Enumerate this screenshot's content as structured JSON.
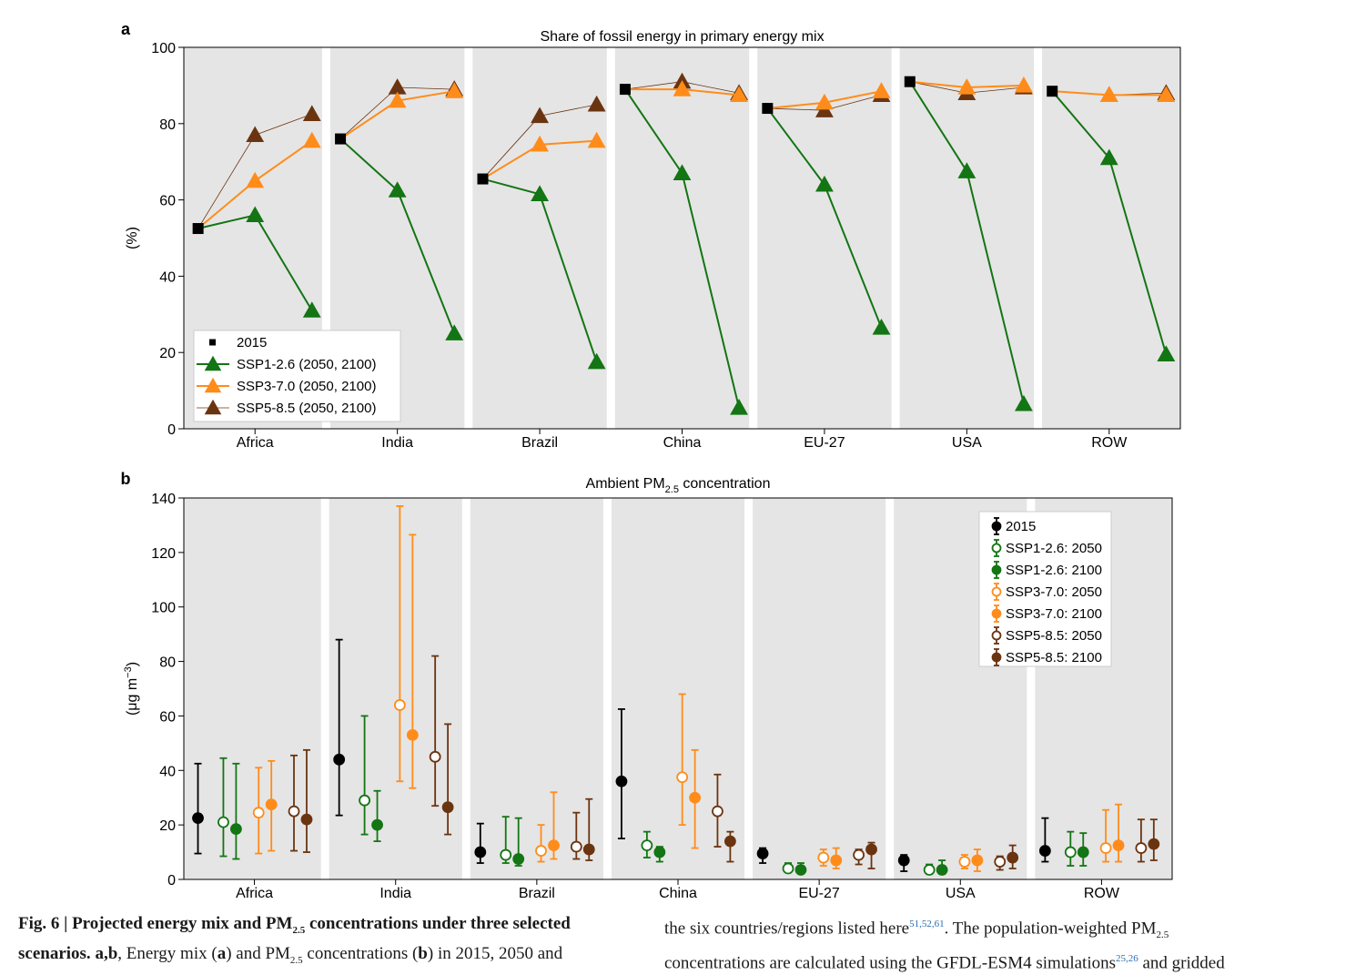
{
  "caption": {
    "fig_label": "Fig. 6 |",
    "bold_a": "Projected energy mix and PM",
    "bold_sub": "2.5",
    "bold_b": " concentrations under three selected",
    "bold_c": "scenarios.",
    "bold_d": "a,b",
    "text_a": ", Energy mix (",
    "text_b": "a",
    "text_c": ") and PM",
    "text_sub": "2.5",
    "text_d": " concentrations (",
    "text_e": "b",
    "text_f": ") in 2015, 2050 and",
    "right_1a": "the six countries/regions listed here",
    "right_1ref": "51,52,61",
    "right_1b": ". The population-weighted PM",
    "right_1sub": "2.5",
    "right_2a": "concentrations are calculated using the GFDL-ESM4 simulations",
    "right_2ref": "25,26",
    "right_2b": " and gridded"
  },
  "colors": {
    "panel_bg": "#e5e5e5",
    "y2015": "#000000",
    "ssp126": "#137513",
    "ssp370": "#ff8c1a",
    "ssp585": "#6b3410"
  },
  "chart_data": [
    {
      "type": "line",
      "panel_label": "a",
      "title": "Share of fossil energy in primary energy mix",
      "ylabel": "(%)",
      "ylim": [
        0,
        100
      ],
      "yticks": [
        0,
        20,
        40,
        60,
        80,
        100
      ],
      "categories": [
        "Africa",
        "India",
        "Brazil",
        "China",
        "EU-27",
        "USA",
        "ROW"
      ],
      "x_points": [
        "2015",
        "2050",
        "2100"
      ],
      "legend_position": "lower-left",
      "base_2015": {
        "name": "2015",
        "values": [
          52.5,
          76,
          65.5,
          89,
          84,
          91,
          88.5
        ]
      },
      "series": [
        {
          "name": "SSP1-2.6 (2050, 2100)",
          "color_key": "ssp126",
          "values": [
            [
              56,
              31
            ],
            [
              62.5,
              25
            ],
            [
              61.5,
              17.5
            ],
            [
              67,
              5.5
            ],
            [
              64,
              26.5
            ],
            [
              67.5,
              6.5
            ],
            [
              71,
              19.5
            ]
          ]
        },
        {
          "name": "SSP3-7.0 (2050, 2100)",
          "color_key": "ssp370",
          "values": [
            [
              65,
              75.5
            ],
            [
              86,
              88.5
            ],
            [
              74.5,
              75.5
            ],
            [
              89,
              87.5
            ],
            [
              85.5,
              88.5
            ],
            [
              89.5,
              90
            ],
            [
              87.5,
              87.5
            ]
          ]
        },
        {
          "name": "SSP5-8.5 (2050, 2100)",
          "color_key": "ssp585",
          "values": [
            [
              77,
              82.5
            ],
            [
              89.5,
              89
            ],
            [
              82,
              85
            ],
            [
              91,
              88
            ],
            [
              83.5,
              87.5
            ],
            [
              88,
              89.5
            ],
            [
              87.5,
              88
            ]
          ]
        }
      ]
    },
    {
      "type": "scatter",
      "panel_label": "b",
      "title_main": "Ambient PM",
      "title_sub": "2.5",
      "title_rest": " concentration",
      "ylabel": "(μg m",
      "ylabel_sup": "−3",
      "ylabel_end": ")",
      "ylim": [
        0,
        140
      ],
      "yticks": [
        0,
        20,
        40,
        60,
        80,
        100,
        120,
        140
      ],
      "categories": [
        "Africa",
        "India",
        "Brazil",
        "China",
        "EU-27",
        "USA",
        "ROW"
      ],
      "legend_position": "top-right",
      "series": [
        {
          "name": "2015",
          "color_key": "y2015",
          "filled": true,
          "values": [
            22.5,
            44,
            10,
            36,
            9.5,
            7,
            10.5
          ],
          "low": [
            9.5,
            23.5,
            6,
            15,
            6,
            3,
            6.5
          ],
          "high": [
            42.5,
            88,
            20.5,
            62.5,
            11.5,
            9,
            22.5
          ]
        },
        {
          "name": "SSP1-2.6: 2050",
          "color_key": "ssp126",
          "filled": false,
          "values": [
            21,
            29,
            9,
            12.5,
            4,
            3.5,
            10
          ],
          "low": [
            8.5,
            16.5,
            6,
            8,
            3,
            2,
            5
          ],
          "high": [
            44.5,
            60,
            23,
            17.5,
            6,
            5.5,
            17.5
          ]
        },
        {
          "name": "SSP1-2.6: 2100",
          "color_key": "ssp126",
          "filled": true,
          "values": [
            18.5,
            20,
            7.5,
            10,
            3.5,
            3.5,
            10
          ],
          "low": [
            7.5,
            14,
            5,
            6.5,
            2.5,
            2,
            5
          ],
          "high": [
            42.5,
            32.5,
            22.5,
            12,
            6,
            7,
            17
          ]
        },
        {
          "name": "SSP3-7.0: 2050",
          "color_key": "ssp370",
          "filled": false,
          "values": [
            24.5,
            64,
            10.5,
            37.5,
            8,
            6.5,
            11.5
          ],
          "low": [
            9.5,
            36,
            6.5,
            20,
            5,
            4,
            6.5
          ],
          "high": [
            41,
            137,
            20,
            68,
            11,
            9,
            25.5
          ]
        },
        {
          "name": "SSP3-7.0: 2100",
          "color_key": "ssp370",
          "filled": true,
          "values": [
            27.5,
            53,
            12.5,
            30,
            7,
            7,
            12.5
          ],
          "low": [
            10.5,
            33.5,
            7.5,
            11.5,
            4,
            3,
            6.5
          ],
          "high": [
            43.5,
            126.5,
            32,
            47.5,
            11.5,
            11,
            27.5
          ]
        },
        {
          "name": "SSP5-8.5: 2050",
          "color_key": "ssp585",
          "filled": false,
          "values": [
            25,
            45,
            12,
            25,
            9,
            6.5,
            11.5
          ],
          "low": [
            10.5,
            27,
            7.5,
            12,
            5.5,
            3.5,
            6.5
          ],
          "high": [
            45.5,
            82,
            24.5,
            38.5,
            11,
            8.5,
            22
          ]
        },
        {
          "name": "SSP5-8.5: 2100",
          "color_key": "ssp585",
          "filled": true,
          "values": [
            22,
            26.5,
            11,
            14,
            11,
            8,
            13
          ],
          "low": [
            10,
            16.5,
            7,
            6.5,
            4,
            4,
            7
          ],
          "high": [
            47.5,
            57,
            29.5,
            17.5,
            13.5,
            12.5,
            22
          ]
        }
      ]
    }
  ]
}
